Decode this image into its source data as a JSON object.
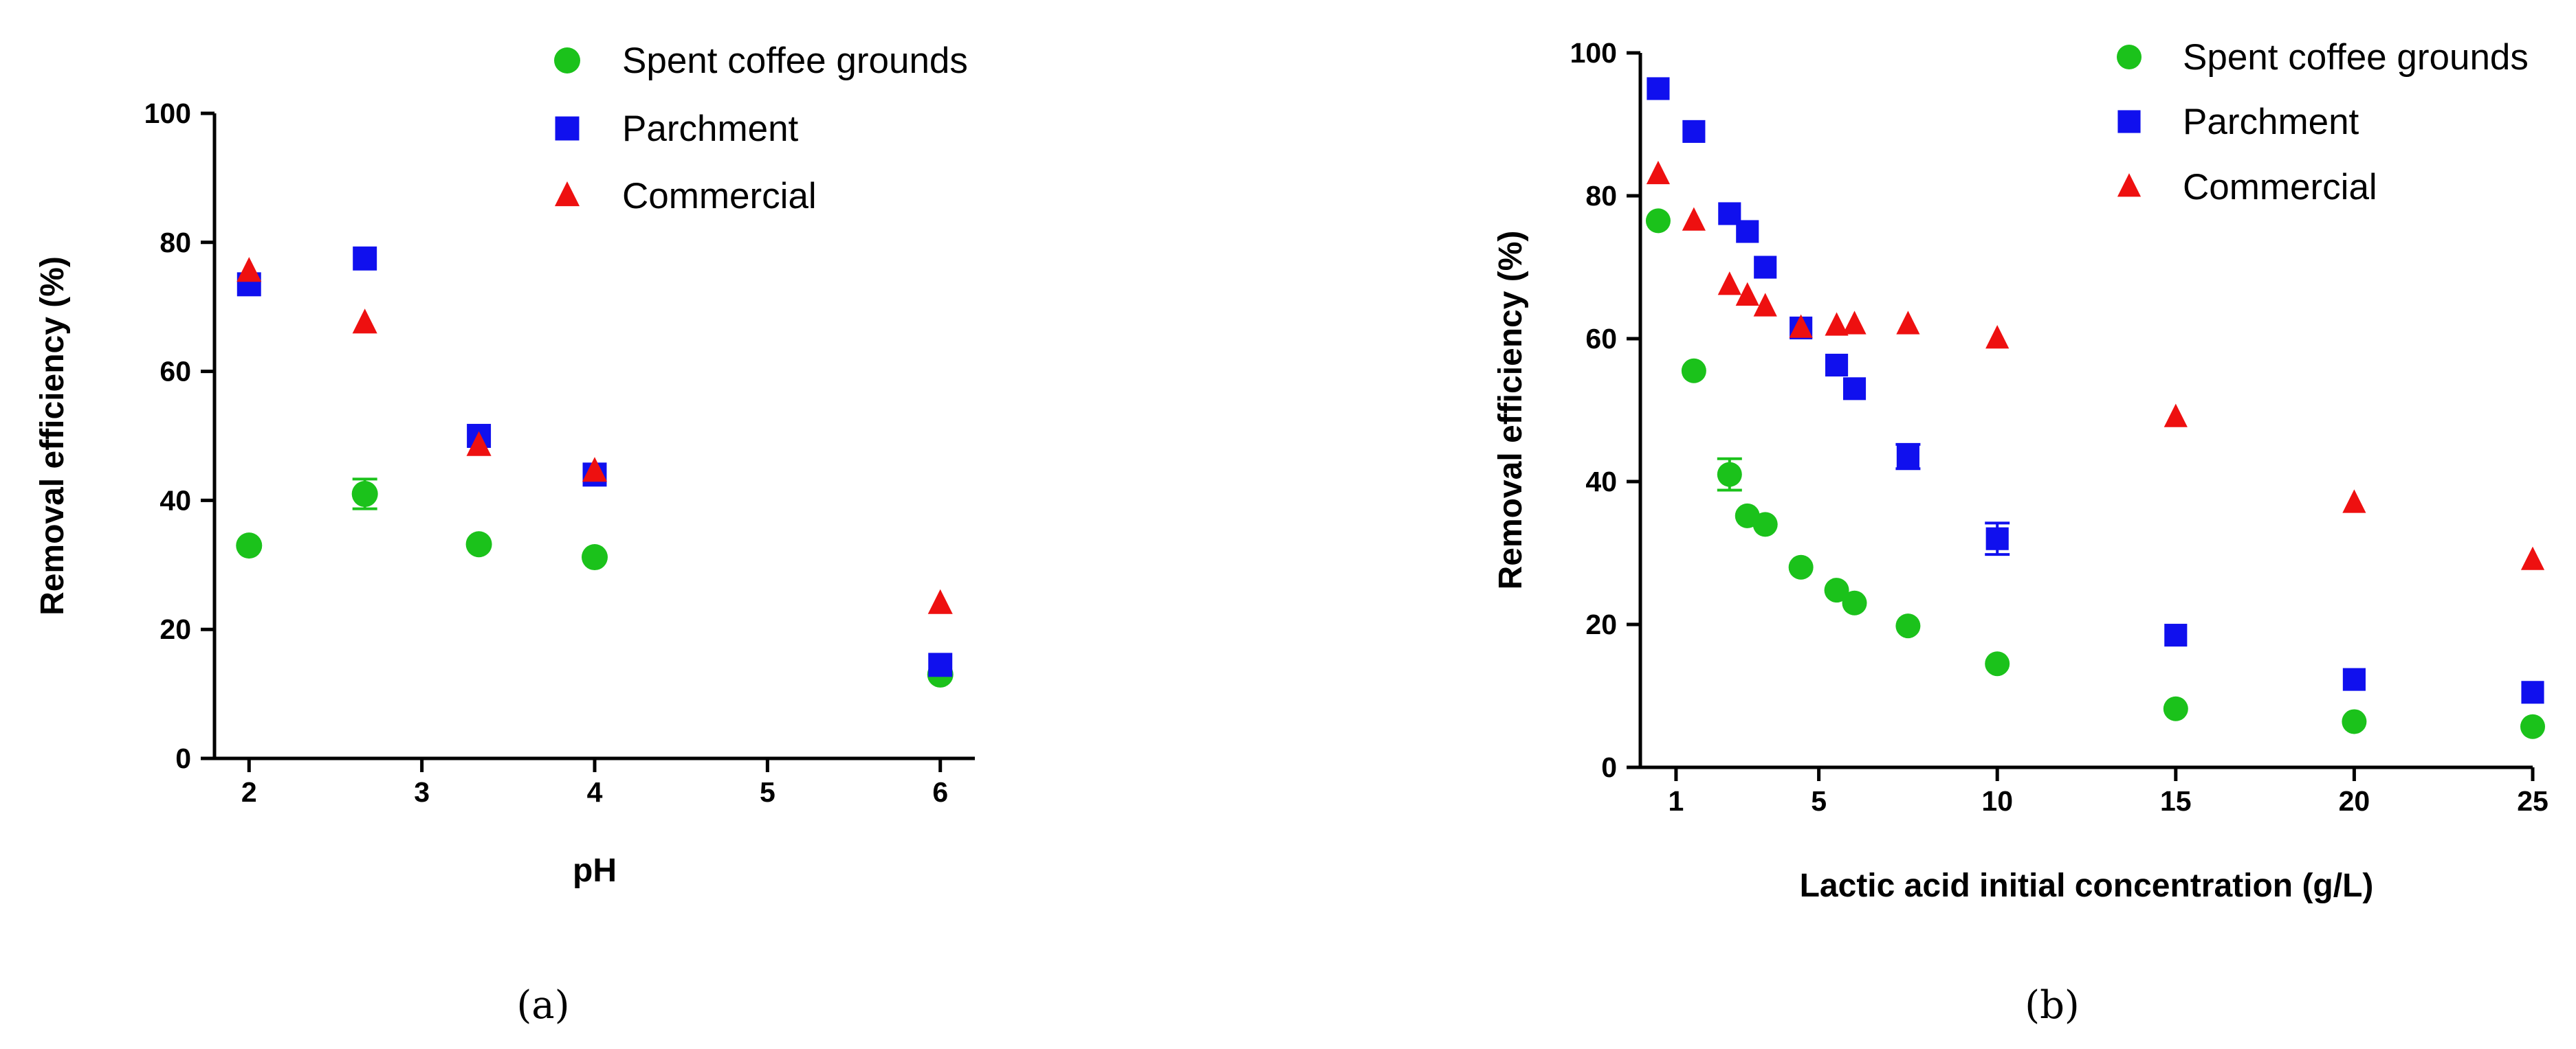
{
  "colors": {
    "spent": "#1bc21b",
    "parchment": "#1010ee",
    "commercial": "#ee1010",
    "axis": "#000000"
  },
  "chart_data": [
    {
      "id": "a",
      "type": "scatter",
      "panel_label": "(a)",
      "xlabel": "pH",
      "ylabel": "Removal efficiency (%)",
      "xlim": [
        1.8,
        6.2
      ],
      "ylim": [
        0,
        100
      ],
      "xticks": [
        2,
        3,
        4,
        5,
        6
      ],
      "yticks": [
        0,
        20,
        40,
        60,
        80,
        100
      ],
      "legend_position": "top-right",
      "series": [
        {
          "name": "Spent coffee grounds",
          "marker": "circle",
          "color": "#1bc21b",
          "x": [
            2,
            2.67,
            3.33,
            4,
            6
          ],
          "y": [
            33,
            41,
            33.2,
            31.2,
            13
          ],
          "err": [
            0,
            2.3,
            0,
            0,
            0
          ]
        },
        {
          "name": "Parchment",
          "marker": "square",
          "color": "#1010ee",
          "x": [
            2,
            2.67,
            3.33,
            4,
            6
          ],
          "y": [
            73.5,
            77.5,
            50,
            44,
            14.5
          ],
          "err": [
            0,
            0,
            0,
            0,
            0
          ]
        },
        {
          "name": "Commercial",
          "marker": "triangle",
          "color": "#ee1010",
          "x": [
            2,
            2.67,
            3.33,
            4,
            6
          ],
          "y": [
            75.5,
            67.5,
            48.5,
            44.5,
            24
          ],
          "err": [
            0,
            0,
            0,
            0,
            0
          ]
        }
      ]
    },
    {
      "id": "b",
      "type": "scatter",
      "panel_label": "(b)",
      "xlabel": "Lactic acid initial concentration (g/L)",
      "ylabel": "Removal efficiency (%)",
      "xlim": [
        0,
        25
      ],
      "ylim": [
        0,
        100
      ],
      "xticks": [
        1,
        5,
        10,
        15,
        20,
        25
      ],
      "yticks": [
        0,
        20,
        40,
        60,
        80,
        100
      ],
      "legend_position": "top-right",
      "series": [
        {
          "name": "Spent coffee grounds",
          "marker": "circle",
          "color": "#1bc21b",
          "x": [
            0.5,
            1.5,
            2.5,
            3,
            3.5,
            4.5,
            5.5,
            6,
            7.5,
            10,
            15,
            20,
            25
          ],
          "y": [
            76.5,
            55.5,
            41,
            35.2,
            34,
            28,
            24.8,
            23,
            19.8,
            14.5,
            8.2,
            6.4,
            5.7
          ],
          "err": [
            0,
            0,
            2.2,
            0,
            0,
            0,
            0,
            0,
            0,
            0,
            0,
            0,
            0
          ]
        },
        {
          "name": "Parchment",
          "marker": "square",
          "color": "#1010ee",
          "x": [
            0.5,
            1.5,
            2.5,
            3,
            3.5,
            4.5,
            5.5,
            6,
            7.5,
            10,
            15,
            20,
            25
          ],
          "y": [
            95,
            89,
            77.5,
            75,
            70,
            61.5,
            56.3,
            53,
            43.5,
            32,
            18.5,
            12.3,
            10.5
          ],
          "err": [
            0,
            0,
            0,
            0,
            0,
            0,
            0,
            0,
            1.7,
            2.2,
            0,
            0,
            0
          ]
        },
        {
          "name": "Commercial",
          "marker": "triangle",
          "color": "#ee1010",
          "x": [
            0.5,
            1.5,
            2.5,
            3,
            3.5,
            4.5,
            5.5,
            6,
            7.5,
            10,
            15,
            20,
            25
          ],
          "y": [
            83,
            76.5,
            67.5,
            66,
            64.5,
            61.5,
            61.8,
            62,
            62,
            60,
            49,
            37,
            29
          ],
          "err": [
            0,
            0,
            0,
            0,
            0,
            0,
            0,
            0,
            0,
            0,
            0,
            0,
            0
          ]
        }
      ]
    }
  ]
}
